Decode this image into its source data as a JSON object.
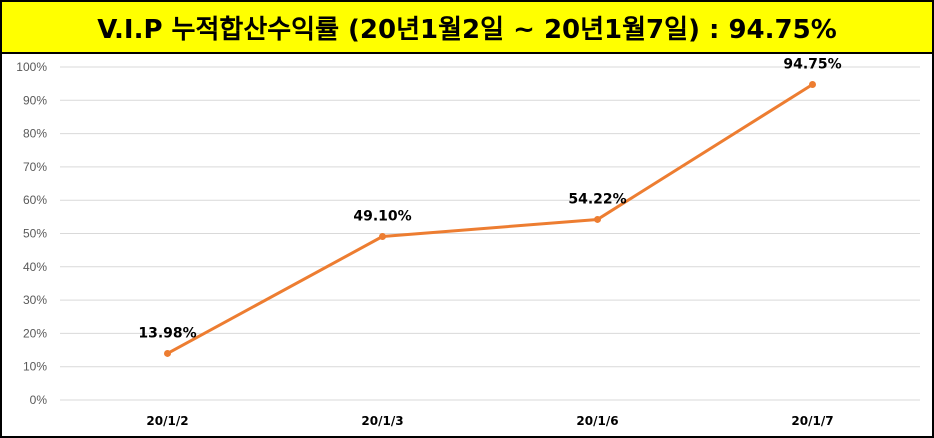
{
  "title": "V.I.P 누적합산수익률 (20년1월2일 ~ 20년1월7일) : 94.75%",
  "chart_data": {
    "type": "line",
    "title": "V.I.P 누적합산수익률 (20년1월2일 ~ 20년1월7일) : 94.75%",
    "categories": [
      "20/1/2",
      "20/1/3",
      "20/1/6",
      "20/1/7"
    ],
    "series": [
      {
        "values": [
          13.98,
          49.1,
          54.22,
          94.75
        ],
        "labels": [
          "13.98%",
          "49.10%",
          "54.22%",
          "94.75%"
        ]
      }
    ],
    "yticks": [
      "0%",
      "10%",
      "20%",
      "30%",
      "40%",
      "50%",
      "60%",
      "70%",
      "80%",
      "90%",
      "100%"
    ],
    "ylim": [
      0,
      100
    ],
    "grid": true,
    "colors": {
      "line": "#ed7d31",
      "grid": "#d9d9d9",
      "title_bg": "#ffff00"
    }
  }
}
